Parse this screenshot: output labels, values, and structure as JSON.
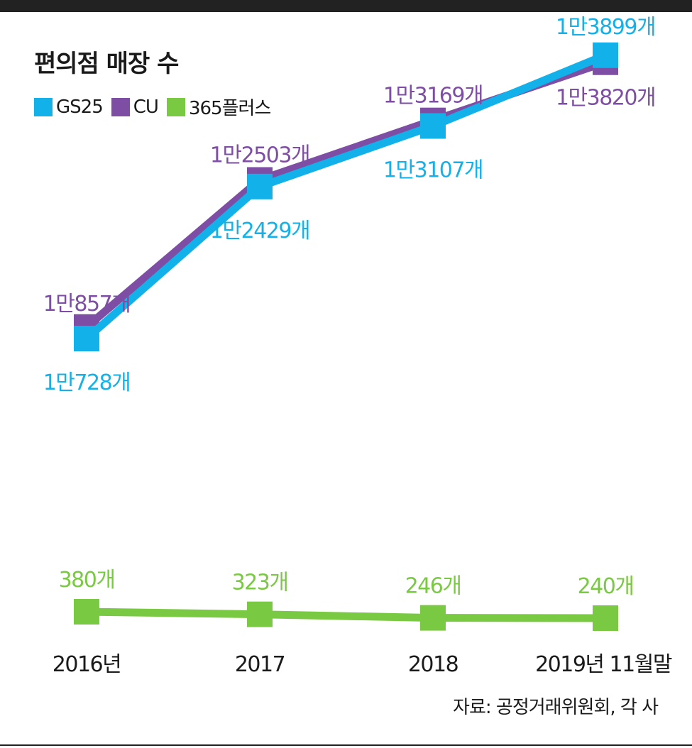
{
  "title": "편의점 매장 수",
  "source": "자료: 공정거래위원회, 각 사",
  "colors": {
    "gs25": "#12b1ea",
    "cu": "#7e4ea4",
    "plus365": "#7ac943",
    "bar": "#222222"
  },
  "chart_data": {
    "type": "line",
    "categories": [
      "2016년",
      "2017",
      "2018",
      "2019년 11월말"
    ],
    "series": [
      {
        "name": "GS25",
        "values": [
          10728,
          12429,
          13107,
          13899
        ],
        "labels": [
          "1만728개",
          "1만2429개",
          "1만3107개",
          "1만3899개"
        ]
      },
      {
        "name": "CU",
        "values": [
          10857,
          12503,
          13169,
          13820
        ],
        "labels": [
          "1만857개",
          "1만2503개",
          "1만3169개",
          "1만3820개"
        ]
      },
      {
        "name": "365플러스",
        "values": [
          380,
          323,
          246,
          240
        ],
        "labels": [
          "380개",
          "323개",
          "246개",
          "240개"
        ]
      }
    ]
  }
}
